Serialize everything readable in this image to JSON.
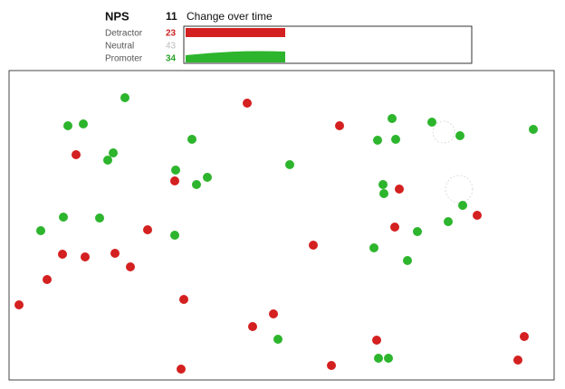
{
  "header": {
    "title": "NPS",
    "score": 11,
    "trend_label": "Change over time"
  },
  "legend": [
    {
      "label": "Detractor",
      "count": 23
    },
    {
      "label": "Neutral",
      "count": 43
    },
    {
      "label": "Promoter",
      "count": 34
    }
  ]
}
